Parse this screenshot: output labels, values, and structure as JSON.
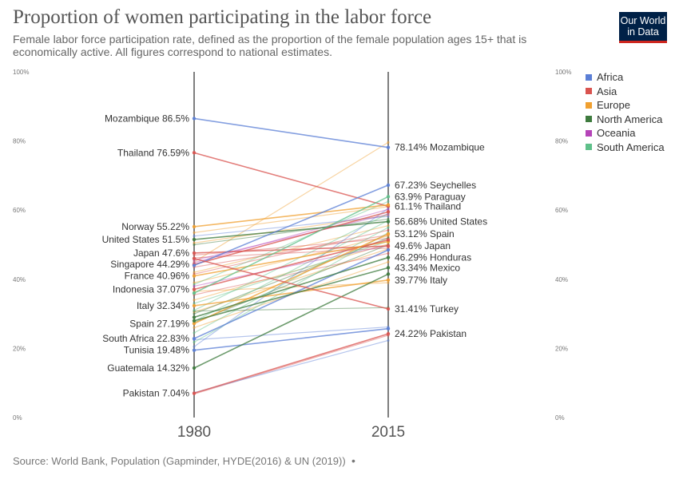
{
  "header": {
    "title": "Proportion of women participating in the labor force",
    "subtitle": "Female labor force participation rate, defined as the proportion of the female population ages 15+ that is economically active. All figures correspond to national estimates.",
    "logo_line1": "Our World",
    "logo_line2": "in Data"
  },
  "footer": {
    "source": "Source: World Bank, Population (Gapminder, HYDE(2016) & UN (2019))",
    "separator": "•"
  },
  "chart_data": {
    "type": "line",
    "subtype": "slope",
    "x": [
      "1980",
      "2015"
    ],
    "ylim": [
      0,
      100
    ],
    "y_ticks": [
      "0%",
      "20%",
      "40%",
      "60%",
      "80%",
      "100%"
    ],
    "legend_position": "right",
    "legend": [
      {
        "name": "Africa",
        "color": "#5b7fd6"
      },
      {
        "name": "Asia",
        "color": "#d9534f"
      },
      {
        "name": "Europe",
        "color": "#f0a030"
      },
      {
        "name": "North America",
        "color": "#3e7b3e"
      },
      {
        "name": "Oceania",
        "color": "#b544b8"
      },
      {
        "name": "South America",
        "color": "#5fc08a"
      }
    ],
    "series": [
      {
        "name": "Mozambique",
        "region": "Africa",
        "values": [
          86.5,
          78.14
        ],
        "label_start": "Mozambique 86.5%",
        "label_end": "78.14% Mozambique",
        "highlight": true
      },
      {
        "name": "Thailand",
        "region": "Asia",
        "values": [
          76.59,
          61.1
        ],
        "label_start": "Thailand 76.59%",
        "label_end": "61.1% Thailand",
        "highlight": true
      },
      {
        "name": "Norway",
        "region": "Europe",
        "values": [
          55.22,
          61.5
        ],
        "label_start": "Norway 55.22%",
        "label_end": "",
        "highlight": true
      },
      {
        "name": "United States",
        "region": "North America",
        "values": [
          51.5,
          56.68
        ],
        "label_start": "United States 51.5%",
        "label_end": "56.68% United States",
        "highlight": true
      },
      {
        "name": "Japan",
        "region": "Asia",
        "values": [
          47.6,
          49.6
        ],
        "label_start": "Japan 47.6%",
        "label_end": "49.6% Japan",
        "highlight": true
      },
      {
        "name": "Singapore",
        "region": "Asia",
        "values": [
          44.29,
          59.5
        ],
        "label_start": "Singapore 44.29%",
        "label_end": "",
        "highlight": true
      },
      {
        "name": "France",
        "region": "Europe",
        "values": [
          40.96,
          50.9
        ],
        "label_start": "France 40.96%",
        "label_end": "",
        "highlight": true
      },
      {
        "name": "Indonesia",
        "region": "Asia",
        "values": [
          37.07,
          51.4
        ],
        "label_start": "Indonesia 37.07%",
        "label_end": "",
        "highlight": true
      },
      {
        "name": "Italy",
        "region": "Europe",
        "values": [
          32.34,
          39.77
        ],
        "label_start": "Italy 32.34%",
        "label_end": "39.77% Italy",
        "highlight": true
      },
      {
        "name": "Spain",
        "region": "Europe",
        "values": [
          27.19,
          53.12
        ],
        "label_start": "Spain 27.19%",
        "label_end": "53.12% Spain",
        "highlight": true
      },
      {
        "name": "South Africa",
        "region": "Africa",
        "values": [
          22.83,
          48.5
        ],
        "label_start": "South Africa 22.83%",
        "label_end": "",
        "highlight": true
      },
      {
        "name": "Tunisia",
        "region": "Africa",
        "values": [
          19.48,
          25.7
        ],
        "label_start": "Tunisia 19.48%",
        "label_end": "",
        "highlight": true
      },
      {
        "name": "Guatemala",
        "region": "North America",
        "values": [
          14.32,
          41.5
        ],
        "label_start": "Guatemala 14.32%",
        "label_end": "",
        "highlight": true
      },
      {
        "name": "Pakistan",
        "region": "Asia",
        "values": [
          7.04,
          24.22
        ],
        "label_start": "Pakistan 7.04%",
        "label_end": "24.22% Pakistan",
        "highlight": true
      },
      {
        "name": "Seychelles",
        "region": "Africa",
        "values": [
          44.0,
          67.23
        ],
        "label_start": "",
        "label_end": "67.23% Seychelles",
        "highlight": true
      },
      {
        "name": "Paraguay",
        "region": "South America",
        "values": [
          36.0,
          63.9
        ],
        "label_start": "",
        "label_end": "63.9% Paraguay",
        "highlight": true
      },
      {
        "name": "Honduras",
        "region": "North America",
        "values": [
          29.0,
          46.29
        ],
        "label_start": "",
        "label_end": "46.29% Honduras",
        "highlight": true
      },
      {
        "name": "Mexico",
        "region": "North America",
        "values": [
          28.0,
          43.34
        ],
        "label_start": "",
        "label_end": "43.34% Mexico",
        "highlight": true
      },
      {
        "name": "Turkey",
        "region": "Asia",
        "values": [
          46.0,
          31.41
        ],
        "label_start": "",
        "label_end": "31.41% Turkey",
        "highlight": true
      },
      {
        "name": "",
        "region": "Europe",
        "values": [
          45.0,
          79.6
        ],
        "label_start": "",
        "label_end": "",
        "highlight": false
      },
      {
        "name": "",
        "region": "Europe",
        "values": [
          53.5,
          61.0
        ],
        "label_start": "",
        "label_end": "",
        "highlight": false
      },
      {
        "name": "",
        "region": "Europe",
        "values": [
          50.5,
          58.5
        ],
        "label_start": "",
        "label_end": "",
        "highlight": false
      },
      {
        "name": "",
        "region": "Europe",
        "values": [
          42.0,
          55.5
        ],
        "label_start": "",
        "label_end": "",
        "highlight": false
      },
      {
        "name": "",
        "region": "Europe",
        "values": [
          39.0,
          52.5
        ],
        "label_start": "",
        "label_end": "",
        "highlight": false
      },
      {
        "name": "",
        "region": "Europe",
        "values": [
          34.0,
          50.2
        ],
        "label_start": "",
        "label_end": "",
        "highlight": false
      },
      {
        "name": "",
        "region": "Europe",
        "values": [
          30.5,
          48.8
        ],
        "label_start": "",
        "label_end": "",
        "highlight": false
      },
      {
        "name": "",
        "region": "Europe",
        "values": [
          26.0,
          45.0
        ],
        "label_start": "",
        "label_end": "",
        "highlight": false
      },
      {
        "name": "",
        "region": "Europe",
        "values": [
          36.5,
          39.0
        ],
        "label_start": "",
        "label_end": "",
        "highlight": false
      },
      {
        "name": "",
        "region": "Asia",
        "values": [
          47.0,
          51.8
        ],
        "label_start": "",
        "label_end": "",
        "highlight": false
      },
      {
        "name": "",
        "region": "Asia",
        "values": [
          46.2,
          49.0
        ],
        "label_start": "",
        "label_end": "",
        "highlight": false
      },
      {
        "name": "",
        "region": "Asia",
        "values": [
          43.5,
          52.8
        ],
        "label_start": "",
        "label_end": "",
        "highlight": false
      },
      {
        "name": "",
        "region": "Asia",
        "values": [
          41.5,
          54.2
        ],
        "label_start": "",
        "label_end": "",
        "highlight": false
      },
      {
        "name": "",
        "region": "Asia",
        "values": [
          35.5,
          47.5
        ],
        "label_start": "",
        "label_end": "",
        "highlight": false
      },
      {
        "name": "",
        "region": "Asia",
        "values": [
          6.8,
          23.8
        ],
        "label_start": "",
        "label_end": "",
        "highlight": false
      },
      {
        "name": "",
        "region": "Africa",
        "values": [
          20.5,
          60.5
        ],
        "label_start": "",
        "label_end": "",
        "highlight": false
      },
      {
        "name": "",
        "region": "Africa",
        "values": [
          22.5,
          26.2
        ],
        "label_start": "",
        "label_end": "",
        "highlight": false
      },
      {
        "name": "",
        "region": "Africa",
        "values": [
          7.2,
          22.3
        ],
        "label_start": "",
        "label_end": "",
        "highlight": false
      },
      {
        "name": "",
        "region": "Africa",
        "values": [
          52.5,
          58.2
        ],
        "label_start": "",
        "label_end": "",
        "highlight": false
      },
      {
        "name": "",
        "region": "North America",
        "values": [
          50.0,
          57.4
        ],
        "label_start": "",
        "label_end": "",
        "highlight": false
      },
      {
        "name": "",
        "region": "North America",
        "values": [
          30.0,
          52.0
        ],
        "label_start": "",
        "label_end": "",
        "highlight": false
      },
      {
        "name": "",
        "region": "North America",
        "values": [
          27.5,
          50.0
        ],
        "label_start": "",
        "label_end": "",
        "highlight": false
      },
      {
        "name": "",
        "region": "North America",
        "values": [
          30.8,
          31.8
        ],
        "label_start": "",
        "label_end": "",
        "highlight": false
      },
      {
        "name": "",
        "region": "South America",
        "values": [
          38.5,
          62.5
        ],
        "label_start": "",
        "label_end": "",
        "highlight": false
      },
      {
        "name": "",
        "region": "South America",
        "values": [
          31.0,
          59.0
        ],
        "label_start": "",
        "label_end": "",
        "highlight": false
      },
      {
        "name": "",
        "region": "South America",
        "values": [
          27.8,
          57.0
        ],
        "label_start": "",
        "label_end": "",
        "highlight": false
      },
      {
        "name": "",
        "region": "South America",
        "values": [
          24.5,
          55.0
        ],
        "label_start": "",
        "label_end": "",
        "highlight": false
      },
      {
        "name": "",
        "region": "South America",
        "values": [
          21.8,
          53.5
        ],
        "label_start": "",
        "label_end": "",
        "highlight": false
      },
      {
        "name": "",
        "region": "South America",
        "values": [
          33.0,
          51.0
        ],
        "label_start": "",
        "label_end": "",
        "highlight": false
      },
      {
        "name": "",
        "region": "Oceania",
        "values": [
          45.5,
          58.8
        ],
        "label_start": "",
        "label_end": "",
        "highlight": false
      },
      {
        "name": "",
        "region": "Oceania",
        "values": [
          44.8,
          60.2
        ],
        "label_start": "",
        "label_end": "",
        "highlight": false
      },
      {
        "name": "",
        "region": "Oceania",
        "values": [
          38.0,
          49.8
        ],
        "label_start": "",
        "label_end": "",
        "highlight": false
      }
    ]
  }
}
